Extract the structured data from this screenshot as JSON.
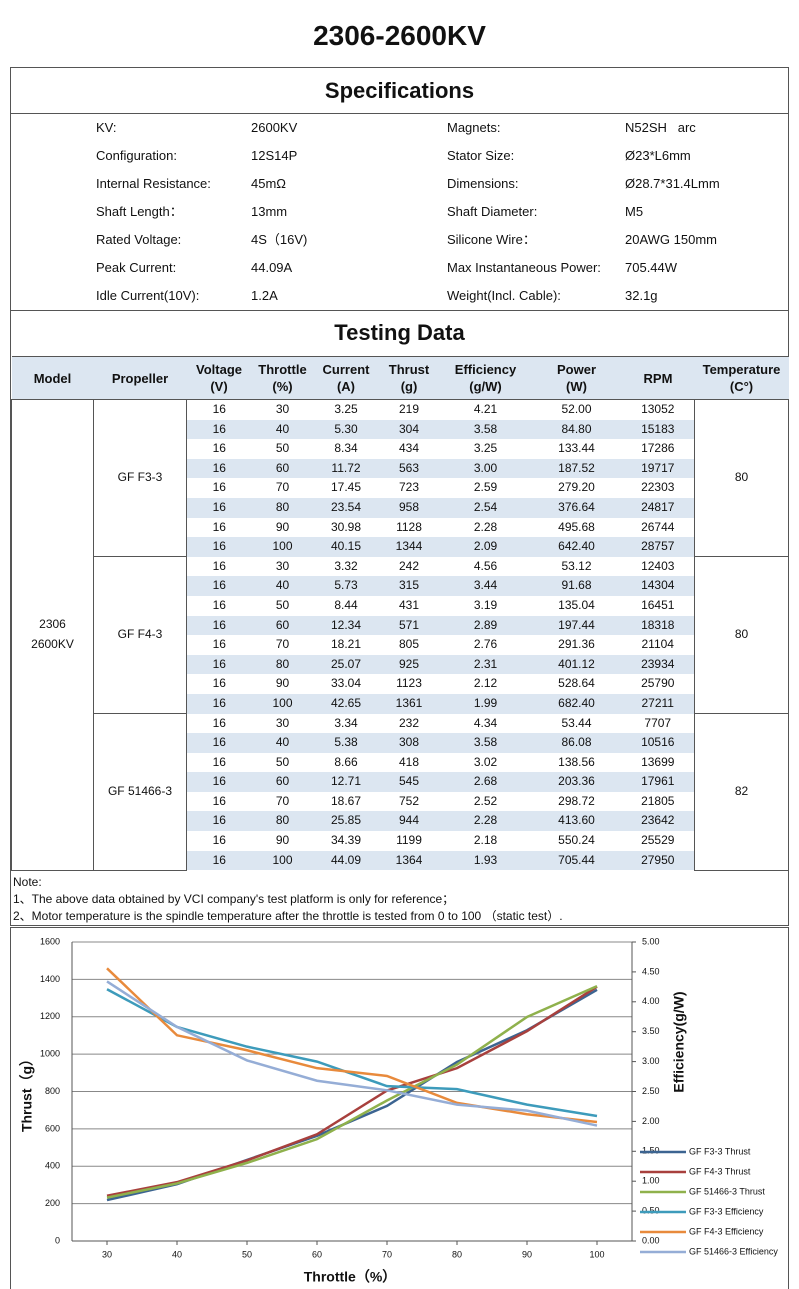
{
  "title": "2306-2600KV",
  "specifications": {
    "heading": "Specifications",
    "rows": [
      [
        "KV:",
        "2600KV",
        "Magnets:",
        "N52SH   arc"
      ],
      [
        "Configuration:",
        "12S14P",
        "Stator Size:",
        "Ø23*L6mm"
      ],
      [
        "Internal Resistance:",
        "45mΩ",
        "Dimensions:",
        "Ø28.7*31.4Lmm"
      ],
      [
        "Shaft Length：",
        "13mm",
        "Shaft Diameter:",
        "M5"
      ],
      [
        "Rated Voltage:",
        "4S（16V)",
        "Silicone Wire：",
        "20AWG 150mm"
      ],
      [
        "Peak Current:",
        "44.09A",
        "Max Instantaneous Power:",
        "705.44W"
      ],
      [
        "Idle Current(10V):",
        "1.2A",
        "Weight(Incl. Cable):",
        "32.1g"
      ]
    ]
  },
  "testing": {
    "heading": "Testing Data",
    "headers": [
      [
        "Model"
      ],
      [
        "Propeller"
      ],
      [
        "Voltage",
        "(V)"
      ],
      [
        "Throttle",
        "(%)"
      ],
      [
        "Current",
        "(A)"
      ],
      [
        "Thrust",
        "(g)"
      ],
      [
        "Efficiency",
        "(g/W)"
      ],
      [
        "Power",
        "(W)"
      ],
      [
        "RPM"
      ],
      [
        "Temperature",
        "(C°)"
      ]
    ],
    "model": [
      "2306",
      "2600KV"
    ],
    "groups": [
      {
        "propeller": "GF F3-3",
        "temperature": 80,
        "rows": [
          [
            16,
            30,
            3.25,
            219,
            4.21,
            "52.00",
            13052
          ],
          [
            16,
            40,
            "5.30",
            304,
            3.58,
            "84.80",
            15183
          ],
          [
            16,
            50,
            8.34,
            434,
            3.25,
            133.44,
            17286
          ],
          [
            16,
            60,
            11.72,
            563,
            "3.00",
            187.52,
            19717
          ],
          [
            16,
            70,
            17.45,
            723,
            2.59,
            "279.20",
            22303
          ],
          [
            16,
            80,
            23.54,
            958,
            2.54,
            376.64,
            24817
          ],
          [
            16,
            90,
            30.98,
            1128,
            2.28,
            495.68,
            26744
          ],
          [
            16,
            100,
            40.15,
            1344,
            2.09,
            "642.40",
            28757
          ]
        ]
      },
      {
        "propeller": "GF F4-3",
        "temperature": 80,
        "rows": [
          [
            16,
            30,
            3.32,
            242,
            4.56,
            53.12,
            12403
          ],
          [
            16,
            40,
            5.73,
            315,
            3.44,
            91.68,
            14304
          ],
          [
            16,
            50,
            8.44,
            431,
            3.19,
            135.04,
            16451
          ],
          [
            16,
            60,
            12.34,
            571,
            2.89,
            197.44,
            18318
          ],
          [
            16,
            70,
            18.21,
            805,
            2.76,
            291.36,
            21104
          ],
          [
            16,
            80,
            25.07,
            925,
            2.31,
            401.12,
            23934
          ],
          [
            16,
            90,
            33.04,
            1123,
            2.12,
            528.64,
            25790
          ],
          [
            16,
            100,
            42.65,
            1361,
            1.99,
            "682.40",
            27211
          ]
        ]
      },
      {
        "propeller": "GF 51466-3",
        "temperature": 82,
        "rows": [
          [
            16,
            30,
            3.34,
            232,
            4.34,
            53.44,
            7707
          ],
          [
            16,
            40,
            5.38,
            308,
            3.58,
            86.08,
            10516
          ],
          [
            16,
            50,
            8.66,
            418,
            3.02,
            138.56,
            13699
          ],
          [
            16,
            60,
            12.71,
            545,
            2.68,
            203.36,
            17961
          ],
          [
            16,
            70,
            18.67,
            752,
            2.52,
            298.72,
            21805
          ],
          [
            16,
            80,
            25.85,
            944,
            2.28,
            "413.60",
            23642
          ],
          [
            16,
            90,
            34.39,
            1199,
            2.18,
            550.24,
            25529
          ],
          [
            16,
            100,
            44.09,
            1364,
            1.93,
            705.44,
            27950
          ]
        ]
      }
    ]
  },
  "note": [
    "Note:",
    "1、The above data obtained by VCI company's test platform is only for reference；",
    "2、Motor temperature is the spindle temperature after the throttle is tested from 0 to 100 （static test）."
  ],
  "chart_data": {
    "type": "line",
    "x_label": "Throttle（%）",
    "y_label": "Thrust（g）",
    "y2_label": "Efficiency(g/W)",
    "x": [
      30,
      40,
      50,
      60,
      70,
      80,
      90,
      100
    ],
    "xlim": [
      25,
      105
    ],
    "xticks": [
      30,
      40,
      50,
      60,
      70,
      80,
      90,
      100
    ],
    "ylim": [
      0,
      1600
    ],
    "yticks": [
      0,
      200,
      400,
      600,
      800,
      1000,
      1200,
      1400,
      1600
    ],
    "y2lim": [
      0,
      5
    ],
    "y2ticks": [
      {
        "value": 0,
        "label": "0.00"
      },
      {
        "value": 0.5,
        "label": "0.50"
      },
      {
        "value": 1,
        "label": "1.00"
      },
      {
        "value": 1.5,
        "label": "1.50"
      },
      {
        "value": 2,
        "label": "2.00"
      },
      {
        "value": 2.5,
        "label": "2.50"
      },
      {
        "value": 3,
        "label": "3.00"
      },
      {
        "value": 3.5,
        "label": "3.50"
      },
      {
        "value": 4,
        "label": "4.00"
      },
      {
        "value": 4.5,
        "label": "4.50"
      },
      {
        "value": 5,
        "label": "5.00"
      }
    ],
    "grid": true,
    "legend": "right",
    "series": [
      {
        "name": "GF F3-3 Thrust",
        "color": "#3c6491",
        "values": [
          219,
          304,
          434,
          563,
          723,
          958,
          1128,
          1344
        ]
      },
      {
        "name": "GF F4-3 Thrust",
        "color": "#a8403d",
        "values": [
          242,
          315,
          431,
          571,
          805,
          925,
          1123,
          1361
        ]
      },
      {
        "name": "GF 51466-3 Thrust",
        "color": "#8fb14c",
        "values": [
          232,
          308,
          418,
          545,
          752,
          944,
          1199,
          1364
        ]
      },
      {
        "name": "GF F3-3 Efficiency",
        "color": "#3d9bbb",
        "axis": "y2",
        "values": [
          4.21,
          3.58,
          3.25,
          3.0,
          2.59,
          2.54,
          2.28,
          2.09
        ]
      },
      {
        "name": "GF F4-3 Efficiency",
        "color": "#e88a3c",
        "axis": "y2",
        "values": [
          4.56,
          3.44,
          3.19,
          2.89,
          2.76,
          2.31,
          2.12,
          1.99
        ]
      },
      {
        "name": "GF 51466-3 Efficiency",
        "color": "#95add6",
        "axis": "y2",
        "values": [
          4.34,
          3.58,
          3.02,
          2.68,
          2.52,
          2.28,
          2.18,
          1.93
        ]
      }
    ]
  }
}
